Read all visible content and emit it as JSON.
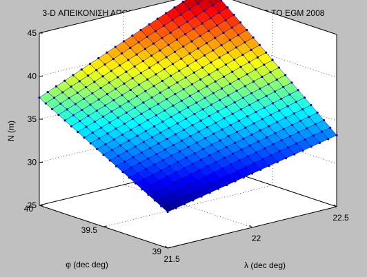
{
  "chart_data": {
    "type": "surface",
    "title": "3-D ΑΠΕΙΚΟΝΙΣΗ ΑΠΟΧΗΣ ΓΕΩΕΙΔΟΥΣ ΚΑΙ ΣΗΜΕΙΩΝ ΑΠΟ ΤΟ EGM 2008",
    "xlabel": "λ (dec deg)",
    "ylabel": "φ (dec deg)",
    "zlabel": "N (m)",
    "xlim": [
      21.5,
      22.5
    ],
    "ylim": [
      39,
      40
    ],
    "zlim": [
      25,
      45
    ],
    "xticks": [
      21.5,
      22,
      22.5
    ],
    "yticks": [
      39,
      39.5,
      40
    ],
    "zticks": [
      25,
      30,
      35,
      40,
      45
    ],
    "xticklabels": [
      "21.5",
      "22",
      "22.5"
    ],
    "yticklabels": [
      "39",
      "39.5",
      "40"
    ],
    "zticklabels": [
      "25",
      "30",
      "35",
      "40",
      "45"
    ],
    "grid": true,
    "colormap": "jet",
    "grid_points": 21,
    "corner_values": [
      {
        "lambda": 21.5,
        "phi": 39,
        "N": 29.2
      },
      {
        "lambda": 22.5,
        "phi": 39,
        "N": 33.3
      },
      {
        "lambda": 21.5,
        "phi": 40,
        "N": 37.5
      },
      {
        "lambda": 22.5,
        "phi": 40,
        "N": 45.8
      }
    ],
    "mesh_color": "#0000b4",
    "marker_color": "#0000b4"
  },
  "colors": {
    "background": "#c0c0c0",
    "axes_face": "#ffffff"
  }
}
